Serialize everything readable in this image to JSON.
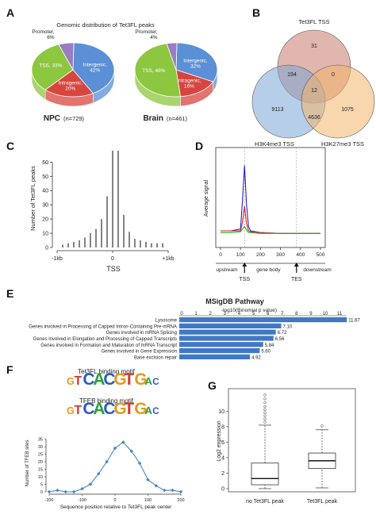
{
  "panels": {
    "A": "A",
    "B": "B",
    "C": "C",
    "D": "D",
    "E": "E",
    "F": "F",
    "G": "G"
  },
  "chart_data": [
    {
      "panel": "A",
      "type": "pie",
      "title": "Genomic distribution of Tet3FL peaks",
      "subcharts": [
        {
          "name": "NPC",
          "n_label": "(n=729)",
          "slices": [
            {
              "label": "Intergenic",
              "value": 42,
              "text": "Intergenic,\n42%"
            },
            {
              "label": "Intragenic",
              "value": 20,
              "text": "Intragenic,\n20%"
            },
            {
              "label": "TSS",
              "value": 33,
              "text": "TSS, 33%"
            },
            {
              "label": "Promoter",
              "value": 6,
              "text": "Promoter,\n6%"
            }
          ]
        },
        {
          "name": "Brain",
          "n_label": "(n=461)",
          "slices": [
            {
              "label": "Intergenic",
              "value": 32,
              "text": "Intergenic,\n32%"
            },
            {
              "label": "Intragenic",
              "value": 16,
              "text": "Intragenic,\n16%"
            },
            {
              "label": "TSS",
              "value": 48,
              "text": "TSS, 48%"
            },
            {
              "label": "Promoter",
              "value": 4,
              "text": "Promoter,\n4%"
            }
          ]
        }
      ],
      "colors": {
        "Intergenic": "#5b8fd6",
        "Intragenic": "#d8453f",
        "TSS": "#8dc63f",
        "Promoter": "#9a7cc0"
      }
    },
    {
      "panel": "B",
      "type": "venn",
      "sets": [
        "Tet3FL TSS",
        "H3K4me3 TSS",
        "H3K27me3 TSS"
      ],
      "regions": {
        "tet_only": 31,
        "tet_k4": 194,
        "tet_k27": 0,
        "all": 12,
        "k4_only": 9113,
        "k27_only": 1075,
        "k4_k27": 4636
      },
      "colors": {
        "Tet3FL TSS": "#c97a6b",
        "H3K4me3 TSS": "#7aa6d6",
        "H3K27me3 TSS": "#f2b56b"
      }
    },
    {
      "panel": "C",
      "type": "bar",
      "ylabel": "Number of Tet3FL peaks",
      "xlabel": "TSS",
      "x_ticks": [
        "-1kb",
        "0",
        "+1kb"
      ],
      "yticks": [
        0,
        10,
        20,
        30,
        40,
        50,
        60
      ],
      "ylim": [
        0,
        68
      ],
      "xlim": [
        -1000,
        1000
      ],
      "x": [
        -900,
        -800,
        -700,
        -600,
        -500,
        -400,
        -300,
        -200,
        -100,
        0,
        100,
        200,
        300,
        400,
        500,
        600,
        700,
        800,
        900
      ],
      "values": [
        2,
        3,
        4,
        5,
        7,
        10,
        13,
        20,
        36,
        68,
        68,
        23,
        11,
        6,
        5,
        4,
        3,
        3,
        3
      ]
    },
    {
      "panel": "D",
      "type": "line",
      "ylabel": "Average signal",
      "xticks": [
        0,
        100,
        200,
        300,
        400,
        500
      ],
      "xlim": [
        0,
        500
      ],
      "region_labels": [
        "upstream",
        "gene body",
        "downstream"
      ],
      "markers": [
        "TSS",
        "TES"
      ],
      "series": [
        {
          "color": "#2222cc",
          "x": [
            0,
            50,
            100,
            110,
            120,
            130,
            140,
            150,
            200,
            300,
            400,
            500
          ],
          "y": [
            0.1,
            0.1,
            0.12,
            0.45,
            0.85,
            0.4,
            0.15,
            0.1,
            0.08,
            0.07,
            0.07,
            0.07
          ]
        },
        {
          "color": "#dd2222",
          "x": [
            0,
            50,
            100,
            110,
            120,
            130,
            140,
            150,
            200,
            300,
            400,
            500
          ],
          "y": [
            0.1,
            0.1,
            0.1,
            0.2,
            0.38,
            0.18,
            0.1,
            0.09,
            0.08,
            0.07,
            0.07,
            0.07
          ]
        },
        {
          "color": "#22aa22",
          "x": [
            0,
            50,
            100,
            110,
            120,
            130,
            140,
            150,
            200,
            300,
            400,
            500
          ],
          "y": [
            0.08,
            0.08,
            0.09,
            0.12,
            0.15,
            0.11,
            0.08,
            0.08,
            0.07,
            0.07,
            0.07,
            0.07
          ]
        }
      ]
    },
    {
      "panel": "E",
      "type": "bar",
      "title": "MSigDB Pathway",
      "subtitle": "-log10(Binomial p value)",
      "xticks": [
        0,
        1,
        2,
        3,
        4,
        5,
        6,
        7,
        8,
        9,
        10,
        11
      ],
      "xlim": [
        0,
        11.6
      ],
      "categories": [
        "Lysosome",
        "Genes involved in Processing of Capped Intron-Containing Pre-mRNA",
        "Genes involved in mRNA Splicing",
        "Genes involved in Elongation and Processing of Capped Transcripts",
        "Genes involved in Formation and Maturation of mRNA Transcript",
        "Genes involved in Gene Expression",
        "Base excision repair"
      ],
      "values": [
        11.67,
        7.1,
        6.72,
        6.56,
        5.84,
        5.6,
        4.92
      ],
      "value_labels": [
        "11.67",
        "7.10",
        "6.72",
        "6.56",
        "5.84",
        "5.60",
        "4.92"
      ],
      "color": "#3f78c6"
    },
    {
      "panel": "F",
      "type": "line",
      "logo_titles": [
        "Tet3FL binding motif",
        "TFEB binding motif"
      ],
      "logo_letters": [
        "G",
        "T",
        "C",
        "A",
        "C",
        "G",
        "T",
        "G",
        "A",
        "C"
      ],
      "logo_colors": {
        "A": "#2e9e3a",
        "C": "#2a5bc4",
        "G": "#e59a1a",
        "T": "#d13a2f"
      },
      "ylabel": "Number of TFEB sites",
      "xlabel": "Sequence position relative to Tet3FL peak center",
      "xticks": [
        -200,
        -100,
        0,
        100,
        200
      ],
      "yticks": [
        0,
        5,
        10,
        15,
        20,
        25,
        30,
        35
      ],
      "xlim": [
        -200,
        200
      ],
      "ylim": [
        0,
        38
      ],
      "x": [
        -200,
        -175,
        -150,
        -125,
        -100,
        -75,
        -50,
        -25,
        0,
        25,
        50,
        75,
        100,
        125,
        150,
        175,
        200
      ],
      "y": [
        0,
        1,
        0,
        0,
        2,
        5,
        12,
        20,
        29,
        33,
        27,
        19,
        8,
        4,
        1,
        1,
        0
      ],
      "color": "#4a86c5"
    },
    {
      "panel": "G",
      "type": "box",
      "ylabel": "Log2 expression",
      "yticks": [
        0,
        2,
        4,
        6,
        8,
        10
      ],
      "ylim": [
        0,
        12.5
      ],
      "categories": [
        "no Tet3FL peak",
        "Tet3FL peak"
      ],
      "boxes": [
        {
          "min": 0,
          "q1": 0.5,
          "median": 1.3,
          "q3": 3.3,
          "max": 8.2,
          "outliers": [
            8.6,
            9.0,
            9.4,
            9.8,
            10.2,
            10.6,
            11.1,
            11.6,
            12.1
          ]
        },
        {
          "min": 0.1,
          "q1": 2.6,
          "median": 3.6,
          "q3": 4.6,
          "max": 7.6,
          "outliers": [
            8.1
          ]
        }
      ]
    }
  ]
}
